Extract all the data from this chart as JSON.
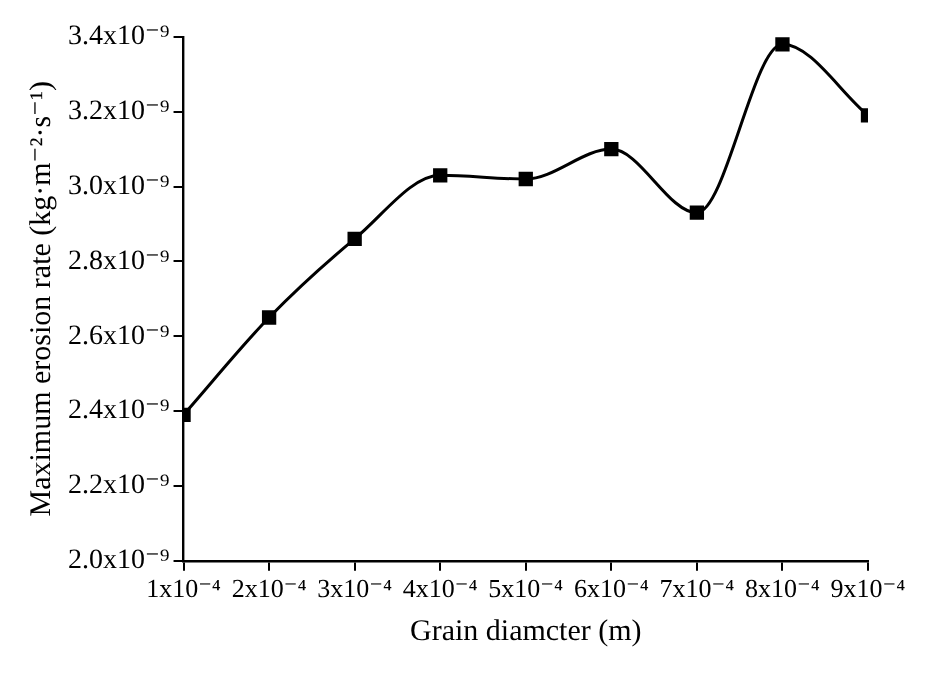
{
  "chart_data": {
    "type": "line",
    "xlabel": "Grain diamcter (m)",
    "ylabel": "Maximum erosion rate (kg·m⁻²·s⁻¹)",
    "x": [
      0.0001,
      0.0002,
      0.0003,
      0.0004,
      0.0005,
      0.0006,
      0.0007,
      0.0008,
      0.0009
    ],
    "series": [
      {
        "color": "#000000",
        "values": [
          2.39e-09,
          2.65e-09,
          2.86e-09,
          3.03e-09,
          3.02e-09,
          3.1e-09,
          2.93e-09,
          3.38e-09,
          3.19e-09
        ]
      }
    ],
    "xlim": [
      0.0001,
      0.0009
    ],
    "xticks": [
      {
        "value": 0.0001,
        "label": "1x10⁻⁴"
      },
      {
        "value": 0.0002,
        "label": "2x10⁻⁴"
      },
      {
        "value": 0.0003,
        "label": "3x10⁻⁴"
      },
      {
        "value": 0.0004,
        "label": "4x10⁻⁴"
      },
      {
        "value": 0.0005,
        "label": "5x10⁻⁴"
      },
      {
        "value": 0.0006,
        "label": "6x10⁻⁴"
      },
      {
        "value": 0.0007,
        "label": "7x10⁻⁴"
      },
      {
        "value": 0.0008,
        "label": "8x10⁻⁴"
      },
      {
        "value": 0.0009,
        "label": "9x10⁻⁴"
      }
    ],
    "ylim": [
      2e-09,
      3.4e-09
    ],
    "yticks": [
      {
        "value": 2e-09,
        "label": "2.0x10⁻⁹"
      },
      {
        "value": 2.2e-09,
        "label": "2.2x10⁻⁹"
      },
      {
        "value": 2.4e-09,
        "label": "2.4x10⁻⁹"
      },
      {
        "value": 2.6e-09,
        "label": "2.6x10⁻⁹"
      },
      {
        "value": 2.8e-09,
        "label": "2.8x10⁻⁹"
      },
      {
        "value": 3e-09,
        "label": "3.0x10⁻⁹"
      },
      {
        "value": 3.2e-09,
        "label": "3.2x10⁻⁹"
      },
      {
        "value": 3.4e-09,
        "label": "3.4x10⁻⁹"
      }
    ],
    "grid": false,
    "legend": false,
    "marker": "square",
    "line_style": "solid"
  }
}
